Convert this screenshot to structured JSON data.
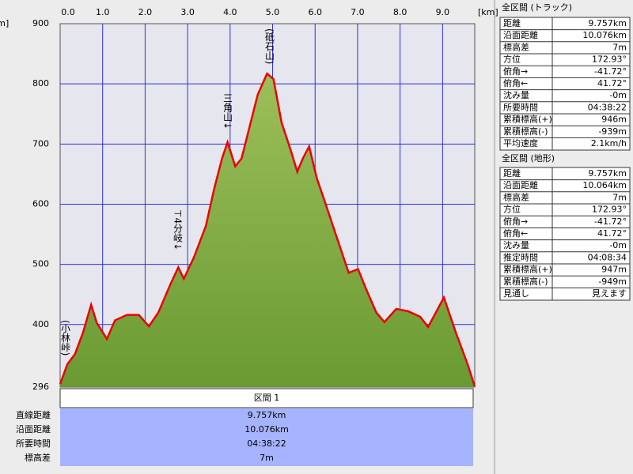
{
  "chart_data": {
    "type": "area",
    "x_unit": "[km]",
    "y_unit": "[m]",
    "x": [
      0,
      0.17,
      0.35,
      0.54,
      0.73,
      0.86,
      1.1,
      1.29,
      1.57,
      1.85,
      2.09,
      2.31,
      2.59,
      2.78,
      2.91,
      3.15,
      3.43,
      3.62,
      3.81,
      3.94,
      4.12,
      4.27,
      4.46,
      4.65,
      4.87,
      5.02,
      5.21,
      5.43,
      5.58,
      5.71,
      5.86,
      6.04,
      6.23,
      6.51,
      6.79,
      7.01,
      7.2,
      7.44,
      7.63,
      7.91,
      8.19,
      8.47,
      8.66,
      9.03,
      9.31,
      9.59,
      9.757
    ],
    "values": [
      301,
      334,
      351,
      387,
      433,
      403,
      376,
      407,
      416,
      416,
      397,
      420,
      466,
      495,
      476,
      512,
      564,
      624,
      676,
      703,
      663,
      676,
      729,
      782,
      817,
      808,
      736,
      689,
      654,
      676,
      696,
      643,
      604,
      545,
      486,
      492,
      459,
      420,
      404,
      426,
      422,
      413,
      396,
      445,
      387,
      334,
      297
    ],
    "color": "#ee0000",
    "fill": "#6a9a32",
    "xlim": [
      0,
      9.757
    ],
    "ylim": [
      296,
      900
    ],
    "xticks": [
      {
        "value": 0,
        "label": "0.0"
      },
      {
        "value": 1,
        "label": "1.0"
      },
      {
        "value": 2,
        "label": "2.0"
      },
      {
        "value": 3,
        "label": "3.0"
      },
      {
        "value": 4,
        "label": "4.0"
      },
      {
        "value": 5,
        "label": "5.0"
      },
      {
        "value": 6,
        "label": "6.0"
      },
      {
        "value": 7,
        "label": "7.0"
      },
      {
        "value": 8,
        "label": "8.0"
      },
      {
        "value": 9,
        "label": "9.0"
      }
    ],
    "yticks": [
      296,
      400,
      500,
      600,
      700,
      800,
      900
    ],
    "grid": true,
    "annotations": [
      "(砥石山)",
      "三角山↓",
      "⊤4分岐↓",
      "(小林峠)"
    ]
  },
  "section": {
    "header": "区間 1",
    "rows": [
      [
        "直線距離",
        "9.757km"
      ],
      [
        "沿面距離",
        "10.076km"
      ],
      [
        "所要時間",
        "04:38:22"
      ],
      [
        "標高差",
        "7m"
      ]
    ]
  },
  "track_panel": {
    "title": "全区間 (トラック)",
    "rows": [
      [
        "距離",
        "9.757km"
      ],
      [
        "沿面距離",
        "10.076km"
      ],
      [
        "標高差",
        "7m"
      ],
      [
        "方位",
        "172.93°"
      ],
      [
        "俯角→",
        "-41.72°"
      ],
      [
        "俯角←",
        "41.72°"
      ],
      [
        "沈み量",
        "-0m"
      ],
      [
        "所要時間",
        "04:38:22"
      ],
      [
        "累積標高(+)",
        "946m"
      ],
      [
        "累積標高(-)",
        "-939m"
      ],
      [
        "平均速度",
        "2.1km/h"
      ]
    ]
  },
  "terrain_panel": {
    "title": "全区間 (地形)",
    "rows": [
      [
        "距離",
        "9.757km"
      ],
      [
        "沿面距離",
        "10.064km"
      ],
      [
        "標高差",
        "7m"
      ],
      [
        "方位",
        "172.93°"
      ],
      [
        "俯角→",
        "-41.72°"
      ],
      [
        "俯角←",
        "41.72°"
      ],
      [
        "沈み量",
        "-0m"
      ],
      [
        "推定時間",
        "04:08:34"
      ],
      [
        "累積標高(+)",
        "947m"
      ],
      [
        "累積標高(-)",
        "-949m"
      ],
      [
        "見通し",
        "見えます"
      ]
    ]
  }
}
